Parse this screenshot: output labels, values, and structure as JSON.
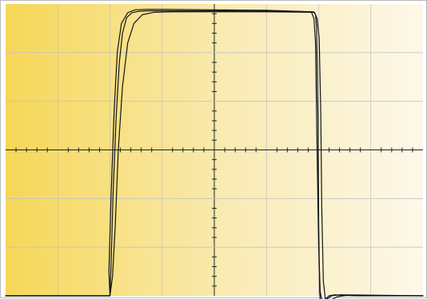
{
  "chart_data": {
    "type": "line",
    "title": "",
    "xlabel": "",
    "ylabel": "",
    "grid": true,
    "grid_divisions": {
      "x": 8,
      "y": 6
    },
    "minor_ticks_per_division": 5,
    "xlim": [
      0,
      8
    ],
    "ylim": [
      -3,
      3
    ],
    "colors": {
      "background_left": "#f6d758",
      "background_mid": "#f9ebb4",
      "background_right": "#fdf8ea",
      "grid": "#c3c3c3",
      "axis": "#222222",
      "trace": "#141414"
    },
    "series": [
      {
        "x": [
          0,
          2.0,
          2.02,
          2.06,
          2.12,
          2.18,
          2.24,
          2.32,
          2.42,
          2.55,
          2.72,
          3.0,
          4.0,
          5.0,
          5.9,
          5.94,
          5.96,
          5.99,
          6.0,
          6.02,
          6.04,
          6.08,
          6.14,
          6.2,
          6.3,
          6.45,
          6.7,
          8.0
        ],
        "y": [
          -3.0,
          -3.0,
          -2.4,
          -0.9,
          0.7,
          1.8,
          2.4,
          2.72,
          2.82,
          2.85,
          2.86,
          2.86,
          2.86,
          2.85,
          2.84,
          2.78,
          2.5,
          0.5,
          -1.5,
          -2.9,
          -3.35,
          -3.22,
          -3.06,
          -3.0,
          -2.98,
          -2.99,
          -3.0,
          -3.0
        ]
      },
      {
        "x": [
          0,
          2.0,
          1.98,
          2.02,
          2.08,
          2.14,
          2.22,
          2.34,
          2.48,
          2.7,
          3.0,
          4.0,
          5.0,
          5.86,
          5.91,
          5.94,
          5.97,
          6.0,
          6.03,
          6.08,
          6.14,
          6.25,
          6.4,
          8.0
        ],
        "y": [
          -3.0,
          -3.0,
          -2.5,
          -1.0,
          0.8,
          2.0,
          2.6,
          2.82,
          2.88,
          2.89,
          2.89,
          2.88,
          2.87,
          2.84,
          2.7,
          2.2,
          0.0,
          -2.0,
          -2.92,
          -3.2,
          -3.08,
          -3.0,
          -2.98,
          -3.0
        ]
      },
      {
        "x": [
          0,
          2.0,
          2.05,
          2.1,
          2.16,
          2.24,
          2.34,
          2.46,
          2.62,
          2.85,
          3.2,
          4.0,
          5.0,
          5.92,
          5.97,
          6.01,
          6.04,
          6.06,
          6.09,
          6.14,
          6.22,
          6.35,
          6.55,
          8.0
        ],
        "y": [
          -3.0,
          -3.0,
          -2.6,
          -1.6,
          0.0,
          1.3,
          2.2,
          2.6,
          2.78,
          2.83,
          2.84,
          2.84,
          2.84,
          2.83,
          2.7,
          2.3,
          0.8,
          -1.2,
          -2.7,
          -3.18,
          -3.1,
          -3.02,
          -2.99,
          -3.0
        ]
      }
    ]
  }
}
